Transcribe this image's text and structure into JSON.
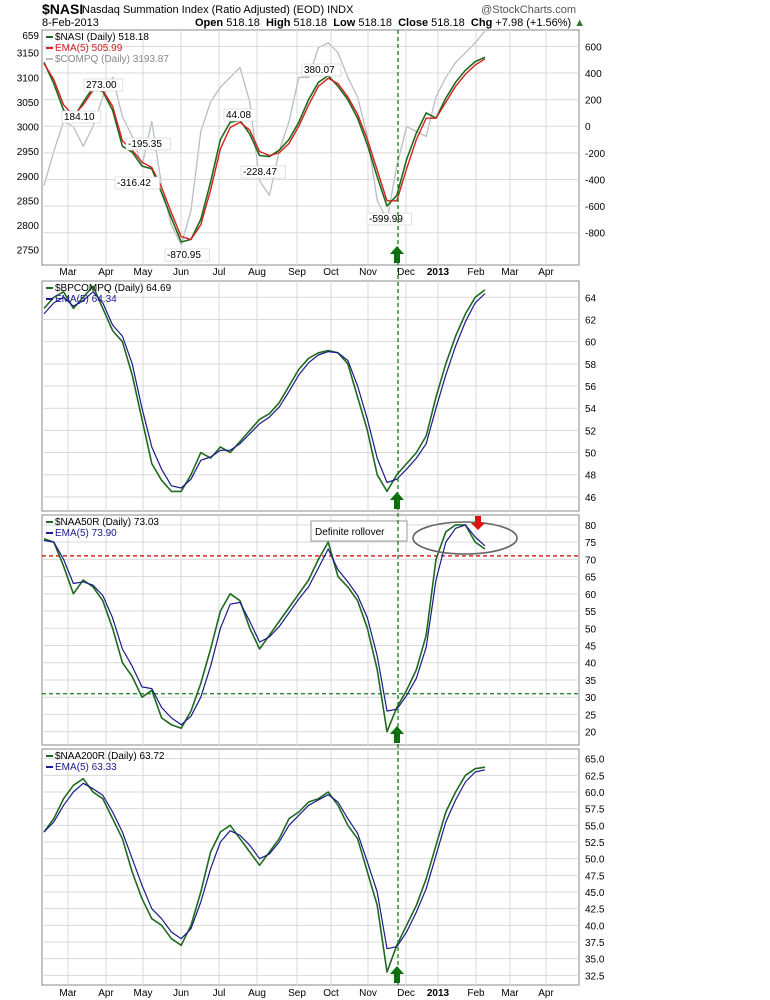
{
  "header": {
    "ticker": "$NASI",
    "description": "Nasdaq Summation Index (Ratio Adjusted) (EOD)  INDX",
    "date": "8-Feb-2013",
    "open_label": "Open",
    "open": "518.18",
    "high_label": "High",
    "high": "518.18",
    "low_label": "Low",
    "low": "518.18",
    "close_label": "Close",
    "close": "518.18",
    "chg_label": "Chg",
    "chg": "+7.98 (+1.56%)",
    "brand": "@StockCharts.com"
  },
  "colors": {
    "green": "#1e6b1e",
    "navy": "#1a1a8c",
    "red": "#d42020",
    "gray": "#b8bcc4",
    "grid": "#d9d9d9",
    "marker_green": "#0a6e0a",
    "marker_red": "#e01010"
  },
  "x_axis": {
    "labels": [
      "Mar",
      "Apr",
      "May",
      "Jun",
      "Jul",
      "Aug",
      "Sep",
      "Oct",
      "Nov",
      "Dec",
      "2013",
      "Feb",
      "Mar",
      "Apr"
    ]
  },
  "chart_data": [
    {
      "type": "line",
      "panel": "nasi",
      "legend": [
        "$NASI (Daily) 518.18",
        "EMA(5) 505.99",
        "$COMPQ (Daily) 3193.87"
      ],
      "left_axis": {
        "ticks": [
          "3150",
          "3100",
          "3050",
          "3000",
          "2950",
          "2900",
          "2850",
          "2800",
          "2750"
        ],
        "top_label": "659",
        "range": [
          2725,
          3190
        ]
      },
      "right_axis": {
        "ticks": [
          "600",
          "400",
          "200",
          "0",
          "-200",
          "-400",
          "-600",
          "-800"
        ],
        "range": [
          -1020,
          700
        ]
      },
      "annotations": [
        {
          "text": "184.10",
          "x": "Mar",
          "y": 184.1
        },
        {
          "text": "273.00",
          "x": "Apr",
          "y": 273.0
        },
        {
          "text": "-195.35",
          "x": "Apr-May",
          "y": -195.35
        },
        {
          "text": "-316.42",
          "x": "May",
          "y": -316.42
        },
        {
          "text": "-870.95",
          "x": "Jun",
          "y": -870.95
        },
        {
          "text": "44.08",
          "x": "Jul",
          "y": 44.08
        },
        {
          "text": "-228.47",
          "x": "Aug",
          "y": -228.47
        },
        {
          "text": "380.07",
          "x": "Sep",
          "y": 380.07
        },
        {
          "text": "-599.99",
          "x": "Nov",
          "y": -599.99
        }
      ],
      "series": [
        {
          "name": "$NASI (Daily)",
          "values": [
            480,
            320,
            120,
            60,
            180,
            290,
            260,
            120,
            -150,
            -195,
            -300,
            -320,
            -500,
            -690,
            -870,
            -850,
            -700,
            -420,
            -100,
            30,
            44,
            -60,
            -220,
            -228,
            -180,
            -100,
            30,
            200,
            330,
            380,
            300,
            200,
            60,
            -140,
            -380,
            -600,
            -520,
            -250,
            -50,
            100,
            60,
            210,
            330,
            420,
            485,
            518
          ]
        },
        {
          "name": "EMA(5)",
          "values": [
            470,
            350,
            160,
            80,
            160,
            270,
            270,
            150,
            -110,
            -180,
            -270,
            -310,
            -460,
            -650,
            -830,
            -850,
            -740,
            -480,
            -170,
            -10,
            30,
            -30,
            -190,
            -220,
            -200,
            -130,
            0,
            160,
            300,
            360,
            320,
            220,
            90,
            -100,
            -330,
            -560,
            -560,
            -320,
            -100,
            60,
            60,
            180,
            300,
            390,
            460,
            506
          ]
        },
        {
          "name": "$COMPQ (Daily)",
          "values": [
            2880,
            2950,
            3010,
            3000,
            2960,
            3000,
            3060,
            3100,
            3020,
            2980,
            2920,
            3010,
            2880,
            2800,
            2760,
            2830,
            2990,
            3050,
            3080,
            3100,
            3120,
            3050,
            2890,
            2860,
            2950,
            3010,
            3100,
            3100,
            3160,
            3170,
            3150,
            3100,
            3060,
            2980,
            2850,
            2810,
            2920,
            3000,
            2990,
            2980,
            3060,
            3100,
            3130,
            3150,
            3170,
            3194
          ]
        }
      ],
      "markers": [
        {
          "type": "up-arrow",
          "at": "Dec"
        }
      ]
    },
    {
      "type": "line",
      "panel": "bpcompq",
      "legend": [
        "$BPCOMPQ (Daily) 64.69",
        "EMA(5) 64.34"
      ],
      "right_axis": {
        "ticks": [
          "64",
          "62",
          "60",
          "58",
          "56",
          "54",
          "52",
          "50",
          "48",
          "46"
        ],
        "range": [
          45,
          65.2
        ]
      },
      "series": [
        {
          "name": "$BPCOMPQ (Daily)",
          "values": [
            63,
            64,
            64.5,
            63,
            64,
            65,
            63,
            61,
            60,
            57,
            53,
            49,
            47.5,
            46.5,
            46.5,
            48,
            50,
            49.5,
            50.5,
            50,
            51,
            52,
            53,
            53.5,
            54.5,
            56,
            57.5,
            58.5,
            59,
            59.2,
            59,
            58,
            55,
            52,
            48,
            46.5,
            48,
            49,
            50,
            51.5,
            55,
            58,
            60.5,
            62.5,
            64,
            64.69
          ]
        },
        {
          "name": "EMA(5)",
          "values": [
            62.5,
            63.5,
            64,
            63.2,
            63.7,
            64.5,
            63.5,
            61.5,
            60.5,
            58,
            54,
            50.5,
            48.5,
            47,
            46.8,
            47.6,
            49.3,
            49.6,
            50.2,
            50.2,
            50.8,
            51.7,
            52.6,
            53.2,
            54.1,
            55.5,
            57,
            58.1,
            58.8,
            59.1,
            59,
            58.3,
            56,
            53,
            49.5,
            47.3,
            47.6,
            48.5,
            49.5,
            50.8,
            54,
            57,
            59.6,
            61.8,
            63.5,
            64.34
          ]
        }
      ],
      "markers": [
        {
          "type": "up-arrow",
          "at": "Dec"
        }
      ]
    },
    {
      "type": "line",
      "panel": "naa50r",
      "legend": [
        "$NAA50R (Daily) 73.03",
        "EMA(5) 73.90"
      ],
      "right_axis": {
        "ticks": [
          "80",
          "75",
          "70",
          "65",
          "60",
          "55",
          "50",
          "45",
          "40",
          "35",
          "30",
          "25",
          "20"
        ],
        "range": [
          17,
          82
        ]
      },
      "annotations": [
        {
          "text": "Definite rollover",
          "near": "Sep-Oct"
        }
      ],
      "reference_lines": [
        {
          "y": 71,
          "color": "red"
        },
        {
          "y": 31,
          "color": "green"
        }
      ],
      "series": [
        {
          "name": "$NAA50R (Daily)",
          "values": [
            76,
            75,
            68,
            60,
            64,
            62,
            58,
            50,
            40,
            36,
            30,
            32,
            24,
            22,
            21,
            26,
            34,
            44,
            55,
            60,
            58,
            50,
            44,
            48,
            52,
            56,
            60,
            64,
            70,
            75,
            65,
            62,
            58,
            50,
            38,
            20,
            27,
            32,
            38,
            48,
            70,
            78,
            80,
            80,
            75,
            73
          ]
        },
        {
          "name": "EMA(5)",
          "values": [
            75.5,
            75,
            70,
            63,
            63.5,
            62.5,
            59.5,
            53,
            44,
            39,
            33,
            32.5,
            27,
            24,
            22,
            24.5,
            30,
            39,
            50,
            57,
            57.5,
            52,
            46,
            47.5,
            50.5,
            54.5,
            58.5,
            62,
            67.5,
            73,
            67,
            63.5,
            59.5,
            53,
            42,
            26,
            26.5,
            30.5,
            35.5,
            44.5,
            64,
            75,
            79,
            80,
            76.5,
            73.9
          ]
        }
      ],
      "markers": [
        {
          "type": "up-arrow",
          "at": "Dec"
        },
        {
          "type": "down-arrow",
          "at": "Feb"
        }
      ]
    },
    {
      "type": "line",
      "panel": "naa200r",
      "legend": [
        "$NAA200R (Daily) 63.72",
        "EMA(5) 63.33"
      ],
      "right_axis": {
        "ticks": [
          "65.0",
          "62.5",
          "60.0",
          "57.5",
          "55.0",
          "52.5",
          "50.0",
          "47.5",
          "45.0",
          "42.5",
          "40.0",
          "37.5",
          "35.0",
          "32.5"
        ],
        "range": [
          31.5,
          66
        ]
      },
      "series": [
        {
          "name": "$NAA200R (Daily)",
          "values": [
            54,
            56,
            59,
            61,
            62,
            60,
            59,
            56,
            53,
            48,
            44,
            41,
            40,
            38,
            37,
            40,
            45,
            51,
            54,
            55,
            53,
            51,
            49,
            51,
            53,
            56,
            57,
            58.5,
            59,
            60,
            58,
            55,
            53,
            48,
            43,
            33,
            37,
            40,
            43,
            47,
            52,
            57,
            60,
            62.5,
            63.5,
            63.72
          ]
        },
        {
          "name": "EMA(5)",
          "values": [
            54,
            55.5,
            58,
            60,
            61.3,
            60.5,
            59.5,
            57,
            54,
            50,
            46,
            42.5,
            41,
            39,
            38,
            39.5,
            43.5,
            48.5,
            52.5,
            54.2,
            53.5,
            52,
            50,
            50.7,
            52.5,
            55,
            56.5,
            58,
            58.8,
            59.6,
            58.5,
            56,
            53.8,
            49.5,
            45,
            36.5,
            36.8,
            39,
            42,
            45.5,
            50.5,
            55.5,
            58.8,
            61.5,
            63,
            63.33
          ]
        }
      ],
      "markers": [
        {
          "type": "up-arrow",
          "at": "Dec"
        }
      ]
    }
  ]
}
